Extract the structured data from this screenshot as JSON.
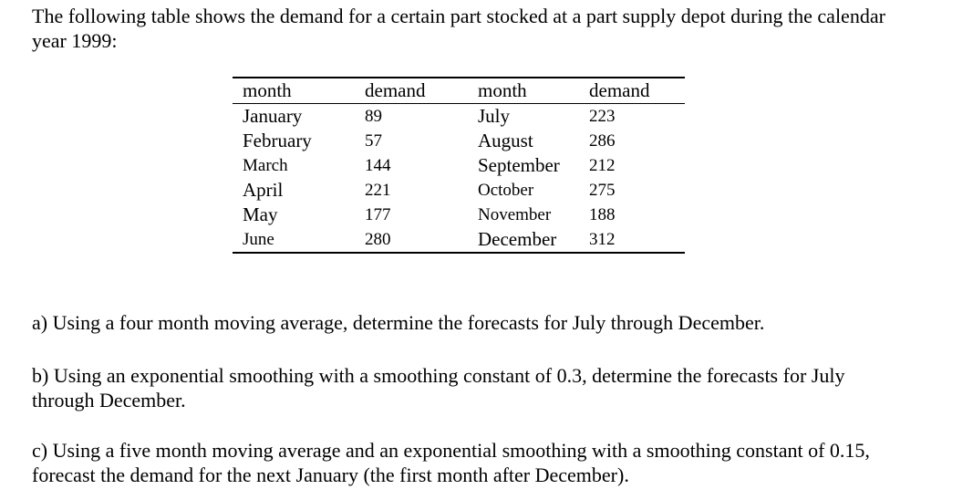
{
  "intro": "The following table shows the demand for a certain part stocked at a part supply depot during the calendar year 1999:",
  "table": {
    "headers": [
      "month",
      "demand",
      "month",
      "demand"
    ],
    "rows": [
      [
        "January",
        "89",
        "July",
        "223"
      ],
      [
        "February",
        "57",
        "August",
        "286"
      ],
      [
        "March",
        "144",
        "September",
        "212"
      ],
      [
        "April",
        "221",
        "October",
        "275"
      ],
      [
        "May",
        "177",
        "November",
        "188"
      ],
      [
        "June",
        "280",
        "December",
        "312"
      ]
    ]
  },
  "questions": {
    "a": "a) Using a four month moving average, determine the forecasts for July through December.",
    "b": "b) Using an exponential smoothing with a smoothing constant of 0.3, determine the forecasts for July through December.",
    "c": "c) Using a five month moving average and an exponential smoothing with a smoothing constant of 0.15, forecast the demand for the next January (the first month after December)."
  }
}
